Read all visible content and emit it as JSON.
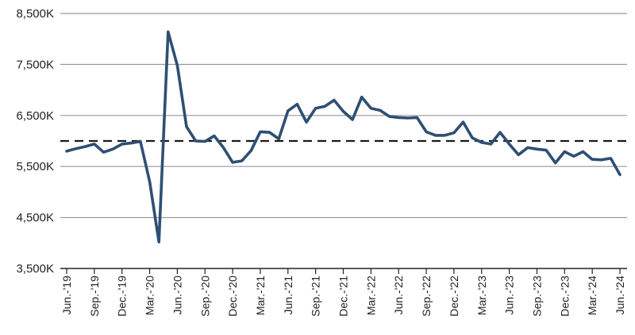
{
  "chart_data": {
    "type": "line",
    "title": "",
    "xlabel": "",
    "ylabel": "",
    "ylim": [
      3500,
      8500
    ],
    "y_ticks": [
      "3,500K",
      "4,500K",
      "5,500K",
      "6,500K",
      "7,500K",
      "8,500K"
    ],
    "y_tick_values": [
      3500,
      4500,
      5500,
      6500,
      7500,
      8500
    ],
    "grid": "horizontal",
    "x_tick_labels": [
      "Jun.-'19",
      "Sep.-'19",
      "Dec.-'19",
      "Mar.-'20",
      "Jun.-'20",
      "Sep.-'20",
      "Dec.-'20",
      "Mar.-'21",
      "Jun.-'21",
      "Sep.-'21",
      "Dec.-'21",
      "Mar.-'22",
      "Jun.-'22",
      "Sep.-'22",
      "Dec.-'22",
      "Mar.-'23",
      "Jun.-'23",
      "Sep.-'23",
      "Dec.-'23",
      "Mar.-'24",
      "Jun.-'24"
    ],
    "reference_line": {
      "value": 6000,
      "style": "dashed",
      "color": "#1a1a1a"
    },
    "series": [
      {
        "color": "#2f4f73",
        "x": [
          "2019-06",
          "2019-07",
          "2019-08",
          "2019-09",
          "2019-10",
          "2019-11",
          "2019-12",
          "2020-01",
          "2020-02",
          "2020-03",
          "2020-04",
          "2020-05",
          "2020-06",
          "2020-07",
          "2020-08",
          "2020-09",
          "2020-10",
          "2020-11",
          "2020-12",
          "2021-01",
          "2021-02",
          "2021-03",
          "2021-04",
          "2021-05",
          "2021-06",
          "2021-07",
          "2021-08",
          "2021-09",
          "2021-10",
          "2021-11",
          "2021-12",
          "2022-01",
          "2022-02",
          "2022-03",
          "2022-04",
          "2022-05",
          "2022-06",
          "2022-07",
          "2022-08",
          "2022-09",
          "2022-10",
          "2022-11",
          "2022-12",
          "2023-01",
          "2023-02",
          "2023-03",
          "2023-04",
          "2023-05",
          "2023-06",
          "2023-07",
          "2023-08",
          "2023-09",
          "2023-10",
          "2023-11",
          "2023-12",
          "2024-01",
          "2024-02",
          "2024-03",
          "2024-04",
          "2024-05",
          "2024-06"
        ],
        "values": [
          5800,
          5850,
          5890,
          5940,
          5780,
          5840,
          5940,
          5960,
          5990,
          5200,
          4020,
          8140,
          7480,
          6280,
          6000,
          5990,
          6100,
          5870,
          5580,
          5610,
          5810,
          6180,
          6170,
          6040,
          6590,
          6720,
          6370,
          6640,
          6680,
          6800,
          6580,
          6420,
          6860,
          6640,
          6600,
          6480,
          6460,
          6450,
          6460,
          6180,
          6110,
          6110,
          6160,
          6370,
          6060,
          5970,
          5940,
          6170,
          5940,
          5730,
          5870,
          5840,
          5820,
          5570,
          5790,
          5700,
          5790,
          5640,
          5630,
          5660,
          5340
        ]
      }
    ]
  },
  "colors": {
    "line": "#2f4f73",
    "grid": "#999999",
    "axis": "#222222",
    "reference": "#1a1a1a"
  }
}
